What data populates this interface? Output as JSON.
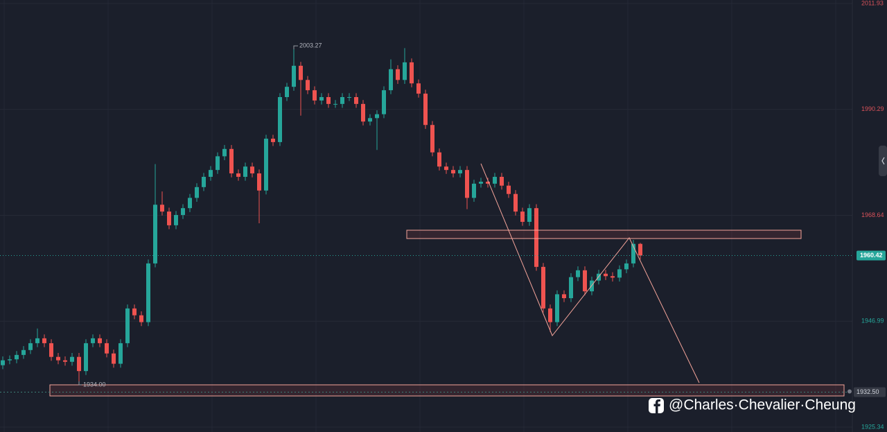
{
  "chart_data": {
    "type": "candlestick",
    "ylim": [
      1924.35,
      2012.64
    ],
    "yticks": [
      2011.93,
      1990.29,
      1968.64,
      1946.99,
      1925.34
    ],
    "grid": true,
    "up_color": "#26a69a",
    "down_color": "#ef5350",
    "open": [
      1938.0,
      1939.0,
      1939.2,
      1940.1,
      1941.1,
      1942.5,
      1943.5,
      1942.5,
      1939.7,
      1939.0,
      1938.7,
      1939.7,
      1936.8,
      1942.5,
      1943.5,
      1942.5,
      1940.4,
      1938.3,
      1942.5,
      1949.6,
      1948.2,
      1946.8,
      1958.8,
      1970.8,
      1969.4,
      1966.6,
      1968.7,
      1970.1,
      1972.2,
      1974.4,
      1976.5,
      1977.9,
      1980.7,
      1982.2,
      1977.2,
      1976.5,
      1978.6,
      1977.2,
      1973.7,
      1984.3,
      1983.6,
      1992.8,
      1994.9,
      1999.2,
      1996.3,
      1994.2,
      1992.1,
      1992.8,
      1991.4,
      1991.4,
      1992.8,
      1992.8,
      1991.4,
      1987.8,
      1988.5,
      1989.3,
      1994.2,
      1998.5,
      1996.3,
      1999.9,
      1995.6,
      1993.5,
      1987.1,
      1981.5,
      1978.6,
      1977.9,
      1977.2,
      1977.9,
      1972.2,
      1975.1,
      1975.5,
      1975.1,
      1976.5,
      1974.7,
      1973.0,
      1969.4,
      1967.3,
      1970.1,
      1958.1,
      1949.6,
      1946.8,
      1952.5,
      1951.7,
      1956.0,
      1957.4,
      1953.1,
      1955.3,
      1956.7,
      1956.2,
      1955.9,
      1957.6,
      1958.8,
      1962.8
    ],
    "high": [
      1939.8,
      1940.0,
      1940.9,
      1941.9,
      1943.3,
      1945.5,
      1944.3,
      1943.3,
      1940.5,
      1939.8,
      1940.5,
      1940.5,
      1943.3,
      1944.3,
      1944.3,
      1943.3,
      1941.2,
      1943.3,
      1950.4,
      1950.4,
      1949.0,
      1959.6,
      1979.1,
      1973.5,
      1970.2,
      1969.5,
      1970.9,
      1973.0,
      1975.2,
      1977.3,
      1978.7,
      1981.5,
      1983.0,
      1983.0,
      1978.0,
      1979.4,
      1979.4,
      1978.0,
      1985.1,
      1985.1,
      1993.6,
      1995.7,
      2003.27,
      2000.0,
      1997.1,
      1995.0,
      1993.6,
      1993.6,
      1992.2,
      1993.6,
      1993.6,
      1993.6,
      1992.2,
      1989.3,
      1990.1,
      1995.0,
      2000.5,
      1999.3,
      2002.8,
      2000.7,
      1996.4,
      1994.3,
      1987.9,
      1982.3,
      1979.4,
      1978.7,
      1978.7,
      1978.7,
      1975.9,
      1976.3,
      1976.3,
      1977.3,
      1977.3,
      1975.5,
      1973.8,
      1970.2,
      1970.9,
      1970.9,
      1958.9,
      1950.4,
      1953.3,
      1953.3,
      1956.8,
      1958.2,
      1958.2,
      1956.1,
      1957.5,
      1957.5,
      1957.0,
      1958.4,
      1959.6,
      1963.6,
      1963.0
    ],
    "low": [
      1937.2,
      1938.2,
      1938.4,
      1939.3,
      1940.3,
      1941.7,
      1941.7,
      1938.9,
      1938.2,
      1937.9,
      1937.9,
      1934.0,
      1936.0,
      1941.7,
      1941.7,
      1939.6,
      1937.5,
      1937.5,
      1941.7,
      1947.4,
      1946.0,
      1946.0,
      1958.0,
      1968.6,
      1965.8,
      1965.8,
      1967.9,
      1969.3,
      1971.4,
      1973.6,
      1975.7,
      1977.1,
      1979.9,
      1976.4,
      1975.7,
      1975.7,
      1976.4,
      1967.0,
      1972.9,
      1982.8,
      1982.8,
      1992.0,
      1994.1,
      1989.0,
      1993.4,
      1991.3,
      1991.3,
      1990.6,
      1990.6,
      1990.6,
      1992.0,
      1990.6,
      1987.0,
      1987.0,
      1982.0,
      1988.5,
      1993.4,
      1995.5,
      1995.5,
      1994.8,
      1992.7,
      1986.3,
      1980.7,
      1977.8,
      1977.1,
      1976.4,
      1976.4,
      1969.9,
      1971.4,
      1974.3,
      1974.3,
      1974.3,
      1973.9,
      1972.2,
      1968.6,
      1966.5,
      1966.5,
      1957.3,
      1948.8,
      1944.8,
      1946.0,
      1950.9,
      1950.9,
      1955.2,
      1952.3,
      1952.3,
      1954.5,
      1955.4,
      1955.1,
      1955.1,
      1956.8,
      1958.0,
      1959.6
    ],
    "close": [
      1939.0,
      1939.2,
      1940.1,
      1941.1,
      1942.5,
      1943.5,
      1942.5,
      1939.7,
      1939.0,
      1938.7,
      1939.7,
      1936.8,
      1942.5,
      1943.5,
      1942.5,
      1940.4,
      1938.3,
      1942.5,
      1949.6,
      1948.2,
      1946.8,
      1958.8,
      1970.8,
      1969.4,
      1966.6,
      1968.7,
      1970.1,
      1972.2,
      1974.4,
      1976.5,
      1977.9,
      1980.7,
      1982.2,
      1977.2,
      1976.5,
      1978.6,
      1977.2,
      1973.7,
      1984.3,
      1983.6,
      1992.8,
      1994.9,
      1999.2,
      1996.3,
      1994.2,
      1992.1,
      1992.8,
      1991.4,
      1991.4,
      1992.8,
      1992.8,
      1991.4,
      1987.8,
      1988.5,
      1989.3,
      1994.2,
      1998.5,
      1996.3,
      1999.9,
      1995.6,
      1993.5,
      1987.1,
      1981.5,
      1978.6,
      1977.9,
      1977.2,
      1977.9,
      1972.2,
      1975.1,
      1975.5,
      1975.1,
      1976.5,
      1974.7,
      1973.0,
      1969.4,
      1967.3,
      1970.1,
      1958.1,
      1949.6,
      1946.8,
      1952.5,
      1951.7,
      1956.0,
      1957.4,
      1953.1,
      1955.3,
      1956.7,
      1956.2,
      1955.9,
      1957.6,
      1958.8,
      1962.8,
      1960.42
    ],
    "high_label": 2003.27,
    "low_label": {
      "value": 1934,
      "label": "1934.00"
    },
    "current_price": 1960.42,
    "alert_price": {
      "value": 1932.5,
      "label": "1932.50"
    }
  },
  "watermark": "@Charles·Chevalier·Cheung"
}
